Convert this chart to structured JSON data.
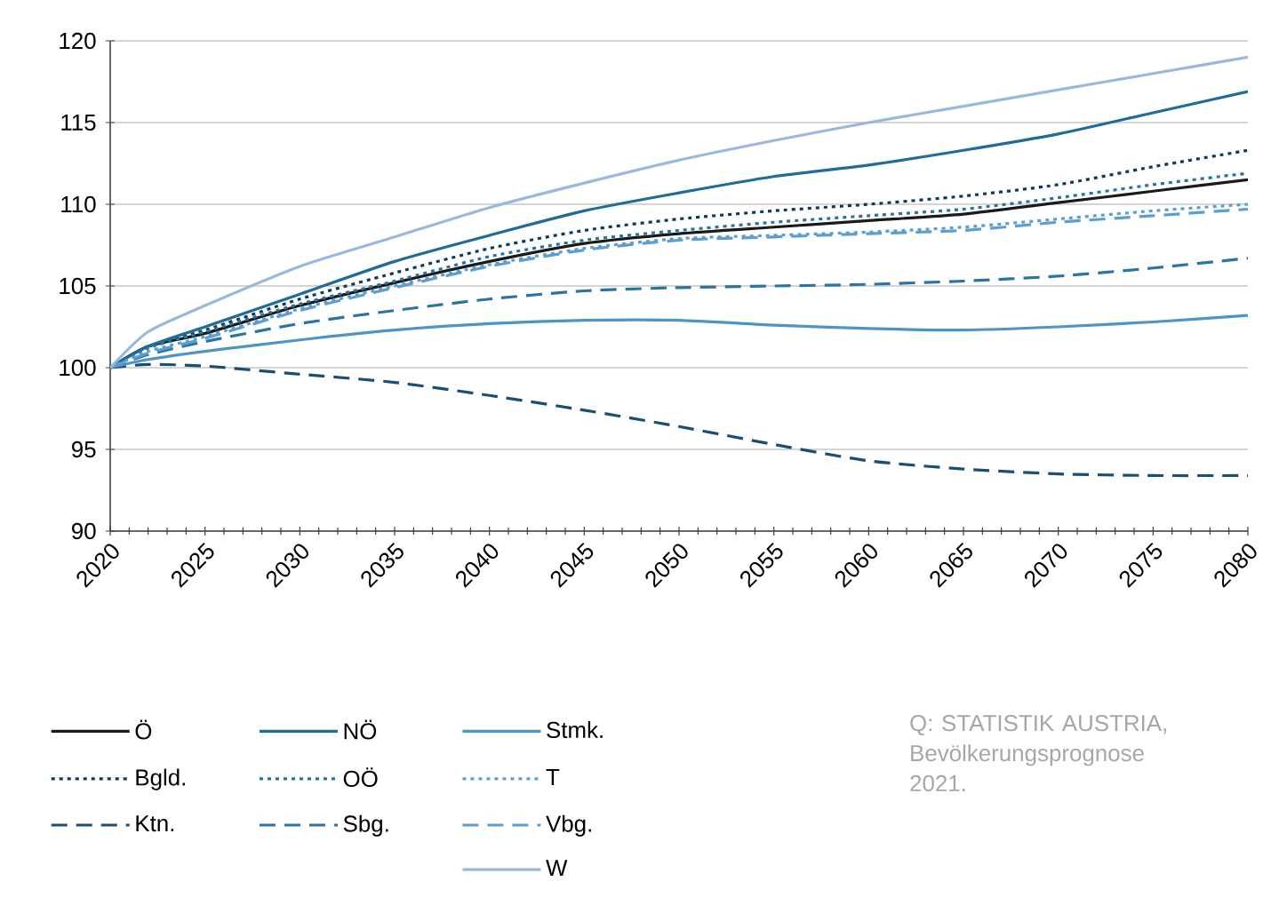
{
  "chart_data": {
    "type": "line",
    "x": [
      2020,
      2022,
      2025,
      2030,
      2035,
      2040,
      2045,
      2050,
      2055,
      2060,
      2065,
      2070,
      2075,
      2080
    ],
    "series": [
      {
        "name": "Ö",
        "color": "#1a1a1a",
        "line_style": "solid",
        "values": [
          100,
          101.3,
          102.1,
          103.8,
          105.2,
          106.5,
          107.6,
          108.2,
          108.6,
          109.0,
          109.4,
          110.1,
          110.8,
          111.5
        ]
      },
      {
        "name": "Bgld.",
        "color": "#0d3a5c",
        "line_style": "dotted",
        "values": [
          100,
          101.3,
          102.3,
          104.2,
          105.8,
          107.3,
          108.4,
          109.1,
          109.6,
          110.0,
          110.5,
          111.2,
          112.3,
          113.3
        ]
      },
      {
        "name": "Ktn.",
        "color": "#1a4f73",
        "line_style": "dashed",
        "values": [
          100,
          100.2,
          100.1,
          99.6,
          99.1,
          98.3,
          97.4,
          96.4,
          95.3,
          94.3,
          93.8,
          93.5,
          93.4,
          93.4
        ]
      },
      {
        "name": "NÖ",
        "color": "#1f6c98",
        "line_style": "solid",
        "values": [
          100,
          101.3,
          102.5,
          104.5,
          106.5,
          108.1,
          109.6,
          110.7,
          111.7,
          112.4,
          113.3,
          114.3,
          115.6,
          116.9
        ]
      },
      {
        "name": "OÖ",
        "color": "#2672a0",
        "line_style": "dotted",
        "values": [
          100,
          101.2,
          102.2,
          103.9,
          105.3,
          106.8,
          107.8,
          108.4,
          108.9,
          109.3,
          109.7,
          110.4,
          111.2,
          111.9
        ]
      },
      {
        "name": "Sbg.",
        "color": "#2a74a3",
        "line_style": "dashed",
        "values": [
          100,
          100.8,
          101.6,
          102.7,
          103.5,
          104.2,
          104.7,
          104.9,
          105.0,
          105.1,
          105.3,
          105.6,
          106.1,
          106.7
        ]
      },
      {
        "name": "Stmk.",
        "color": "#4d94c8",
        "line_style": "solid",
        "values": [
          100,
          100.5,
          101.0,
          101.7,
          102.3,
          102.7,
          102.9,
          102.9,
          102.6,
          102.4,
          102.3,
          102.5,
          102.8,
          103.2
        ]
      },
      {
        "name": "T",
        "color": "#5b9fd2",
        "line_style": "dotted",
        "values": [
          100,
          101.0,
          101.9,
          103.6,
          105.0,
          106.3,
          107.3,
          107.9,
          108.1,
          108.3,
          108.6,
          109.1,
          109.6,
          110.0
        ]
      },
      {
        "name": "Vbg.",
        "color": "#5b9fd2",
        "line_style": "dashed",
        "values": [
          100,
          100.9,
          101.8,
          103.5,
          104.9,
          106.2,
          107.2,
          107.8,
          108.0,
          108.2,
          108.4,
          108.9,
          109.3,
          109.7
        ]
      },
      {
        "name": "W",
        "color": "#9bb8dc",
        "line_style": "solid",
        "values": [
          100,
          102.2,
          103.8,
          106.2,
          108.0,
          109.8,
          111.3,
          112.7,
          113.9,
          115.0,
          116.0,
          117.0,
          118.0,
          119.0
        ]
      }
    ],
    "xlim": [
      2020,
      2080
    ],
    "ylim": [
      90,
      120
    ],
    "xticks": [
      2020,
      2025,
      2030,
      2035,
      2040,
      2045,
      2050,
      2055,
      2060,
      2065,
      2070,
      2075,
      2080
    ],
    "yticks": [
      90,
      95,
      100,
      105,
      110,
      115,
      120
    ],
    "grid": "y",
    "legend": "bottom",
    "annotations": [
      "Q: STATISTIK AUSTRIA, Bevölkerungsprognose 2021."
    ]
  }
}
